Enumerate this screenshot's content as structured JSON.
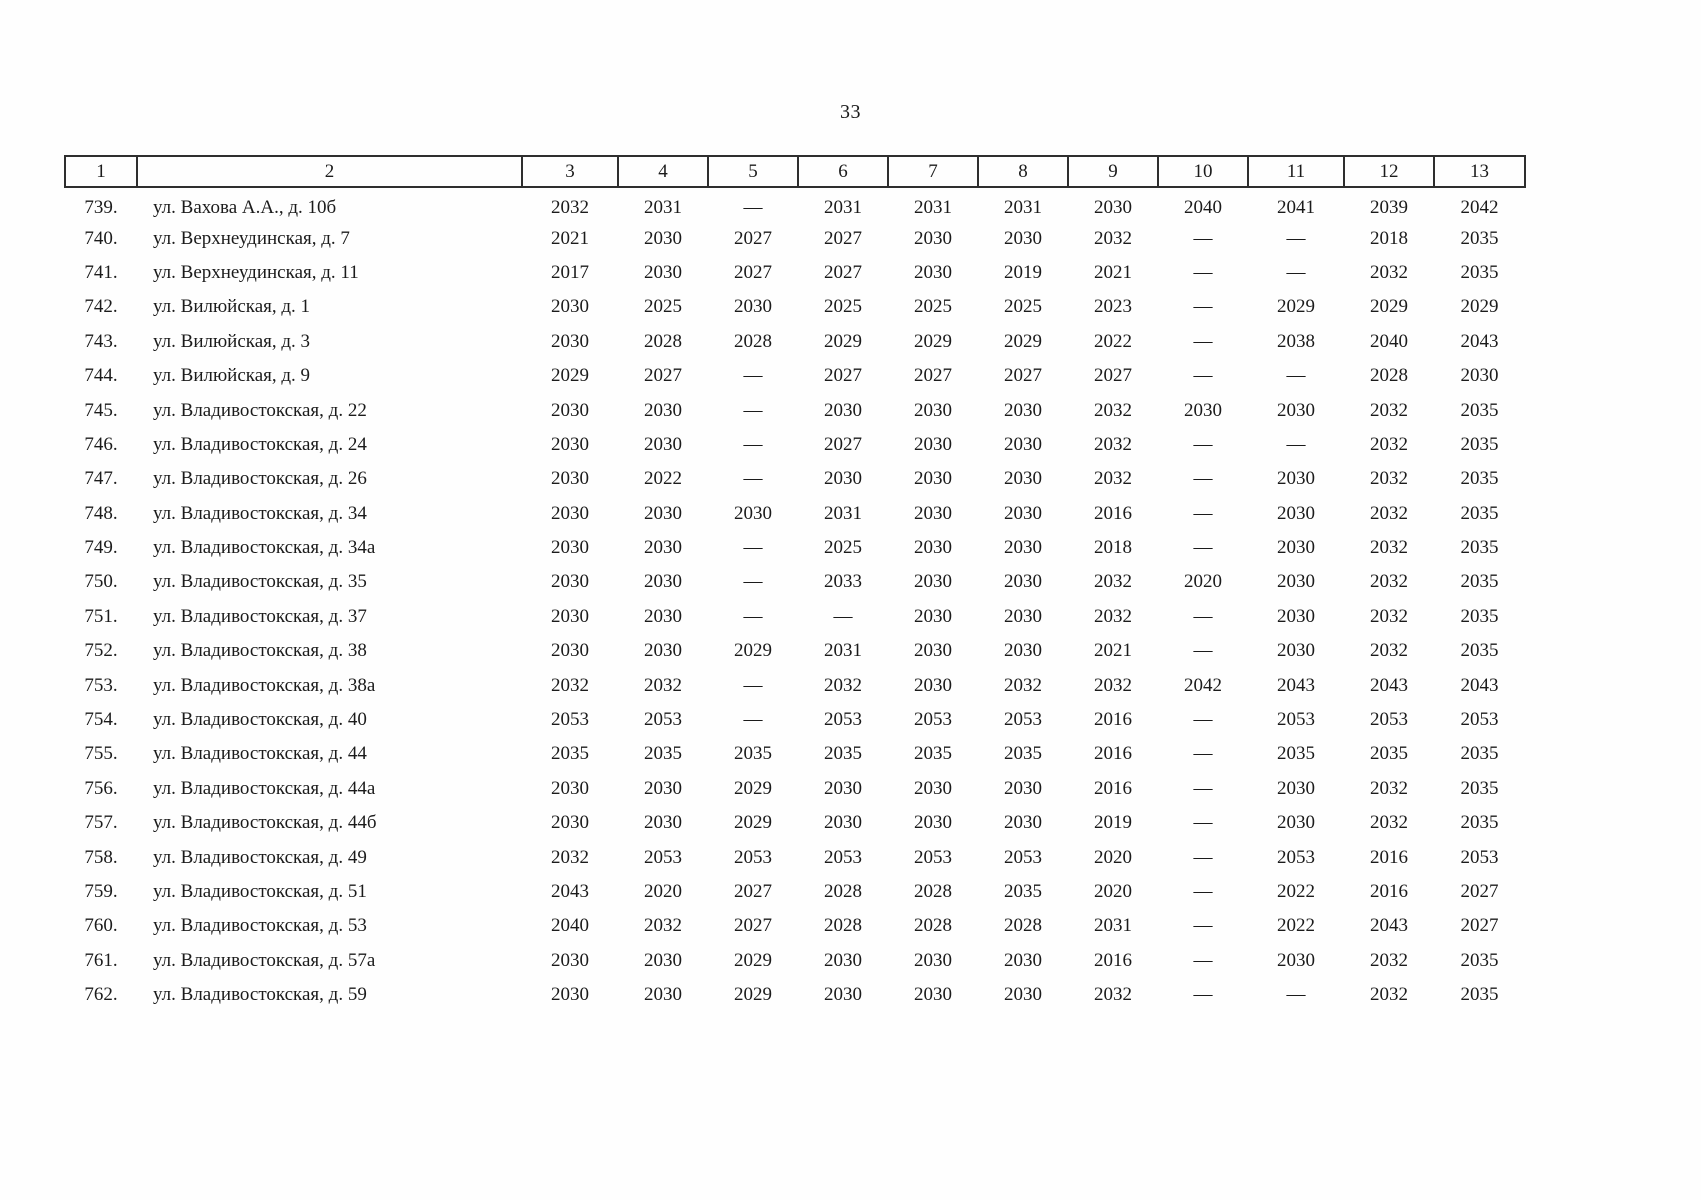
{
  "page": {
    "number": "33"
  },
  "table": {
    "headers": [
      "1",
      "2",
      "3",
      "4",
      "5",
      "6",
      "7",
      "8",
      "9",
      "10",
      "11",
      "12",
      "13"
    ],
    "rows": [
      {
        "num": "739.",
        "address": "ул. Вахова А.А., д. 10б",
        "values": [
          "2032",
          "2031",
          "—",
          "2031",
          "2031",
          "2031",
          "2030",
          "2040",
          "2041",
          "2039",
          "2042"
        ]
      },
      {
        "num": "740.",
        "address": "ул. Верхнеудинская, д. 7",
        "values": [
          "2021",
          "2030",
          "2027",
          "2027",
          "2030",
          "2030",
          "2032",
          "—",
          "—",
          "2018",
          "2035"
        ]
      },
      {
        "num": "741.",
        "address": "ул. Верхнеудинская, д. 11",
        "values": [
          "2017",
          "2030",
          "2027",
          "2027",
          "2030",
          "2019",
          "2021",
          "—",
          "—",
          "2032",
          "2035"
        ]
      },
      {
        "num": "742.",
        "address": "ул. Вилюйская, д. 1",
        "values": [
          "2030",
          "2025",
          "2030",
          "2025",
          "2025",
          "2025",
          "2023",
          "—",
          "2029",
          "2029",
          "2029"
        ]
      },
      {
        "num": "743.",
        "address": "ул. Вилюйская, д. 3",
        "values": [
          "2030",
          "2028",
          "2028",
          "2029",
          "2029",
          "2029",
          "2022",
          "—",
          "2038",
          "2040",
          "2043"
        ]
      },
      {
        "num": "744.",
        "address": "ул. Вилюйская, д. 9",
        "values": [
          "2029",
          "2027",
          "—",
          "2027",
          "2027",
          "2027",
          "2027",
          "—",
          "—",
          "2028",
          "2030"
        ]
      },
      {
        "num": "745.",
        "address": "ул. Владивостокская, д. 22",
        "values": [
          "2030",
          "2030",
          "—",
          "2030",
          "2030",
          "2030",
          "2032",
          "2030",
          "2030",
          "2032",
          "2035"
        ]
      },
      {
        "num": "746.",
        "address": "ул. Владивостокская, д. 24",
        "values": [
          "2030",
          "2030",
          "—",
          "2027",
          "2030",
          "2030",
          "2032",
          "—",
          "—",
          "2032",
          "2035"
        ]
      },
      {
        "num": "747.",
        "address": "ул. Владивостокская, д. 26",
        "values": [
          "2030",
          "2022",
          "—",
          "2030",
          "2030",
          "2030",
          "2032",
          "—",
          "2030",
          "2032",
          "2035"
        ]
      },
      {
        "num": "748.",
        "address": "ул. Владивостокская, д. 34",
        "values": [
          "2030",
          "2030",
          "2030",
          "2031",
          "2030",
          "2030",
          "2016",
          "—",
          "2030",
          "2032",
          "2035"
        ]
      },
      {
        "num": "749.",
        "address": "ул. Владивостокская, д. 34а",
        "values": [
          "2030",
          "2030",
          "—",
          "2025",
          "2030",
          "2030",
          "2018",
          "—",
          "2030",
          "2032",
          "2035"
        ]
      },
      {
        "num": "750.",
        "address": "ул. Владивостокская, д. 35",
        "values": [
          "2030",
          "2030",
          "—",
          "2033",
          "2030",
          "2030",
          "2032",
          "2020",
          "2030",
          "2032",
          "2035"
        ]
      },
      {
        "num": "751.",
        "address": "ул. Владивостокская, д. 37",
        "values": [
          "2030",
          "2030",
          "—",
          "—",
          "2030",
          "2030",
          "2032",
          "—",
          "2030",
          "2032",
          "2035"
        ]
      },
      {
        "num": "752.",
        "address": "ул. Владивостокская, д. 38",
        "values": [
          "2030",
          "2030",
          "2029",
          "2031",
          "2030",
          "2030",
          "2021",
          "—",
          "2030",
          "2032",
          "2035"
        ]
      },
      {
        "num": "753.",
        "address": "ул. Владивостокская, д. 38а",
        "values": [
          "2032",
          "2032",
          "—",
          "2032",
          "2030",
          "2032",
          "2032",
          "2042",
          "2043",
          "2043",
          "2043"
        ]
      },
      {
        "num": "754.",
        "address": "ул. Владивостокская, д. 40",
        "values": [
          "2053",
          "2053",
          "—",
          "2053",
          "2053",
          "2053",
          "2016",
          "—",
          "2053",
          "2053",
          "2053"
        ]
      },
      {
        "num": "755.",
        "address": "ул. Владивостокская, д. 44",
        "values": [
          "2035",
          "2035",
          "2035",
          "2035",
          "2035",
          "2035",
          "2016",
          "—",
          "2035",
          "2035",
          "2035"
        ]
      },
      {
        "num": "756.",
        "address": "ул. Владивостокская, д. 44а",
        "values": [
          "2030",
          "2030",
          "2029",
          "2030",
          "2030",
          "2030",
          "2016",
          "—",
          "2030",
          "2032",
          "2035"
        ]
      },
      {
        "num": "757.",
        "address": "ул. Владивостокская, д. 44б",
        "values": [
          "2030",
          "2030",
          "2029",
          "2030",
          "2030",
          "2030",
          "2019",
          "—",
          "2030",
          "2032",
          "2035"
        ]
      },
      {
        "num": "758.",
        "address": "ул. Владивостокская, д. 49",
        "values": [
          "2032",
          "2053",
          "2053",
          "2053",
          "2053",
          "2053",
          "2020",
          "—",
          "2053",
          "2016",
          "2053"
        ]
      },
      {
        "num": "759.",
        "address": "ул. Владивостокская, д. 51",
        "values": [
          "2043",
          "2020",
          "2027",
          "2028",
          "2028",
          "2035",
          "2020",
          "—",
          "2022",
          "2016",
          "2027"
        ]
      },
      {
        "num": "760.",
        "address": "ул. Владивостокская, д. 53",
        "values": [
          "2040",
          "2032",
          "2027",
          "2028",
          "2028",
          "2028",
          "2031",
          "—",
          "2022",
          "2043",
          "2027"
        ]
      },
      {
        "num": "761.",
        "address": "ул. Владивостокская, д. 57а",
        "values": [
          "2030",
          "2030",
          "2029",
          "2030",
          "2030",
          "2030",
          "2016",
          "—",
          "2030",
          "2032",
          "2035"
        ]
      },
      {
        "num": "762.",
        "address": "ул. Владивостокская, д. 59",
        "values": [
          "2030",
          "2030",
          "2029",
          "2030",
          "2030",
          "2030",
          "2032",
          "—",
          "—",
          "2032",
          "2035"
        ]
      }
    ]
  }
}
